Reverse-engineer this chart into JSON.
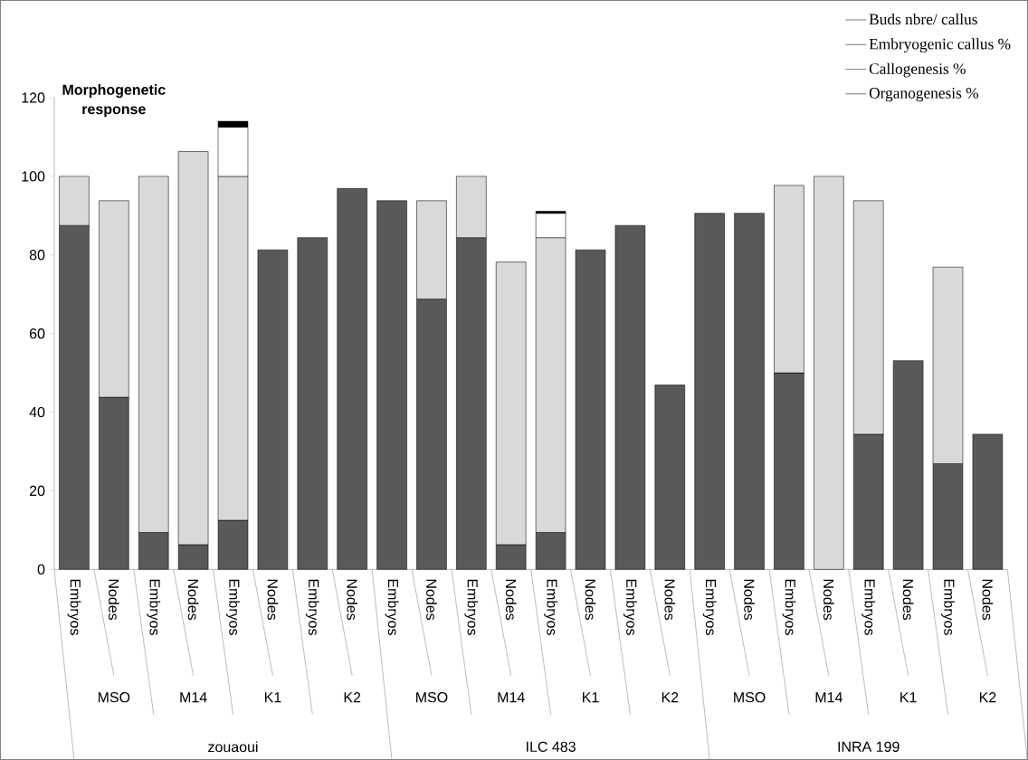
{
  "chart_data": {
    "type": "bar",
    "stacked": true,
    "ylabel": "Morphogenetic response",
    "categories": [
      "Embryos",
      "Nodes",
      "Embryos",
      "Nodes",
      "Embryos",
      "Nodes",
      "Embryos",
      "Nodes",
      "Embryos",
      "Nodes",
      "Embryos",
      "Nodes",
      "Embryos",
      "Nodes",
      "Embryos",
      "Nodes",
      "Embryos",
      "Nodes",
      "Embryos",
      "Nodes",
      "Embryos",
      "Nodes",
      "Embryos",
      "Nodes"
    ],
    "series": [
      {
        "name": "Organogenesis %",
        "color": "#595959",
        "values": [
          87.5,
          43.8,
          9.4,
          6.3,
          12.5,
          81.3,
          84.4,
          96.9,
          93.8,
          68.8,
          84.4,
          6.3,
          9.4,
          81.3,
          87.5,
          46.9,
          90.6,
          90.6,
          50,
          null,
          34.4,
          53.1,
          26.9,
          34.4
        ]
      },
      {
        "name": "Callogenesis %",
        "color": "#d9d9d9",
        "values": [
          12.5,
          50,
          90.6,
          100,
          87.5,
          null,
          null,
          null,
          null,
          25,
          15.6,
          71.9,
          75,
          null,
          null,
          null,
          null,
          null,
          47.7,
          100,
          59.4,
          null,
          50,
          null
        ]
      },
      {
        "name": "Embryogenic callus %",
        "color": "#ffffff",
        "values": [
          null,
          null,
          null,
          null,
          12.5,
          null,
          null,
          null,
          null,
          null,
          null,
          null,
          6.2,
          null,
          null,
          null,
          null,
          null,
          null,
          null,
          null,
          null,
          null,
          null
        ]
      },
      {
        "name": "Buds nbre/ callus",
        "color": "#000000",
        "values": [
          null,
          null,
          null,
          null,
          1.5,
          null,
          null,
          null,
          null,
          null,
          null,
          null,
          0.5,
          null,
          null,
          null,
          null,
          null,
          null,
          null,
          null,
          null,
          null,
          null
        ]
      }
    ],
    "annotations": [
      "MSO",
      "M14",
      "K1",
      "K2",
      "MSO",
      "M14",
      "K1",
      "K2",
      "MSO",
      "M14",
      "K1",
      "K2",
      "zouaoui",
      "ILC 483",
      "INRA 199"
    ],
    "ylim": [
      0,
      120
    ],
    "yticks": [
      0,
      20,
      40,
      60,
      80,
      100,
      120
    ],
    "legend": "top right"
  }
}
